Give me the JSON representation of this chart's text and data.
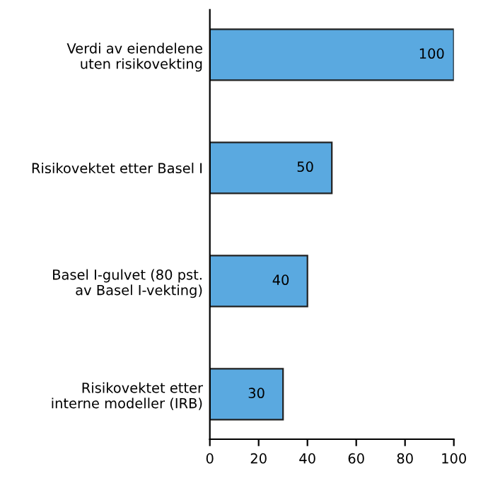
{
  "chart_data": {
    "type": "bar",
    "orientation": "horizontal",
    "categories": [
      "Verdi av eiendelene\nuten risikovekting",
      "Risikovektet etter Basel I",
      "Basel I-gulvet (80 pst.\nav Basel I-vekting)",
      "Risikovektet etter\ninterne modeller (IRB)"
    ],
    "values": [
      100,
      50,
      40,
      30
    ],
    "color": "#5aa9e0",
    "xlim": [
      0,
      100
    ],
    "xticks": [
      0,
      20,
      40,
      60,
      80,
      100
    ],
    "data_labels": true,
    "grid": false
  }
}
